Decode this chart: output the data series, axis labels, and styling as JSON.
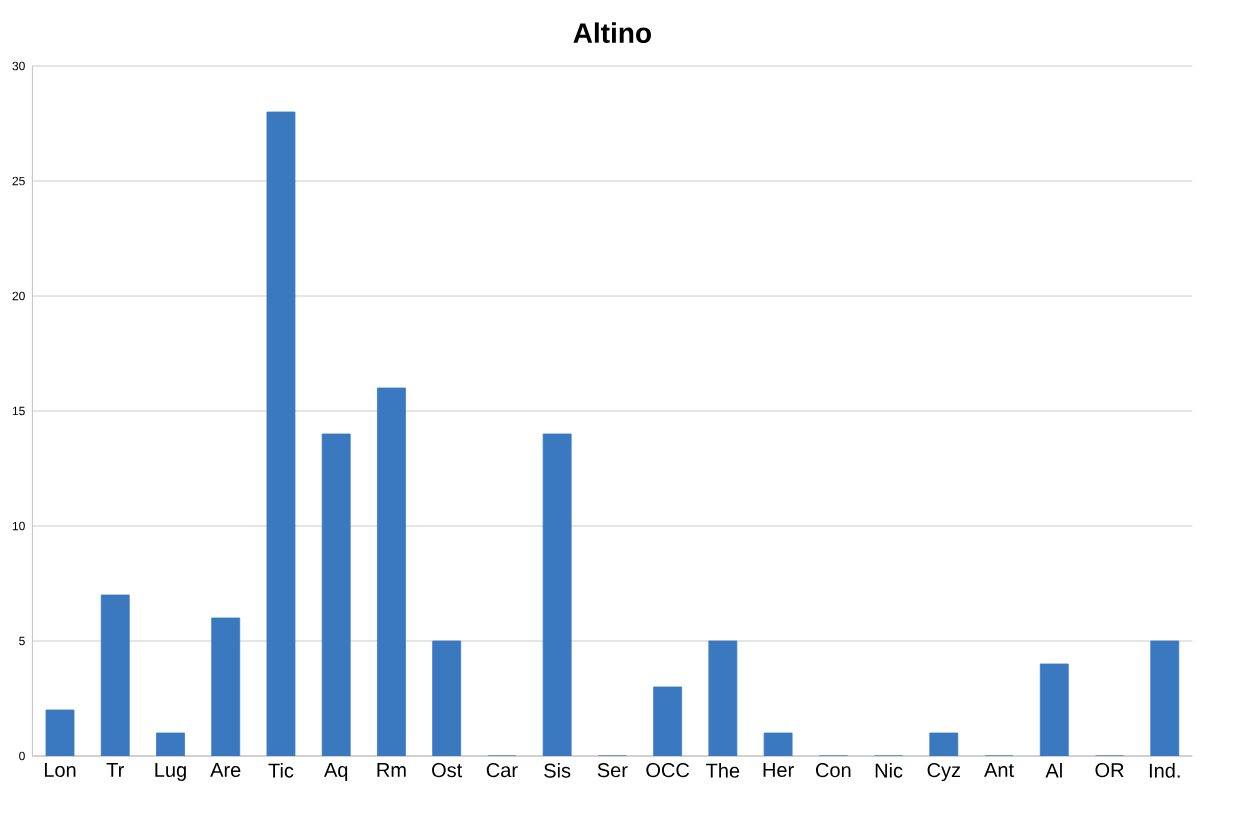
{
  "chart_data": {
    "type": "bar",
    "title": "Altino",
    "categories": [
      "Lon",
      "Tr",
      "Lug",
      "Are",
      "Tic",
      "Aq",
      "Rm",
      "Ost",
      "Car",
      "Sis",
      "Ser",
      "OCC",
      "The",
      "Her",
      "Con",
      "Nic",
      "Cyz",
      "Ant",
      "Al",
      "OR",
      "Ind."
    ],
    "values": [
      2,
      7,
      1,
      6,
      28,
      14,
      16,
      5,
      0,
      14,
      0,
      3,
      5,
      1,
      0,
      0,
      1,
      0,
      4,
      0,
      5
    ],
    "color": "#3a78c0",
    "ylim": [
      0,
      30
    ],
    "yticks": [
      0,
      5,
      10,
      15,
      20,
      25,
      30
    ],
    "grid": "y"
  }
}
